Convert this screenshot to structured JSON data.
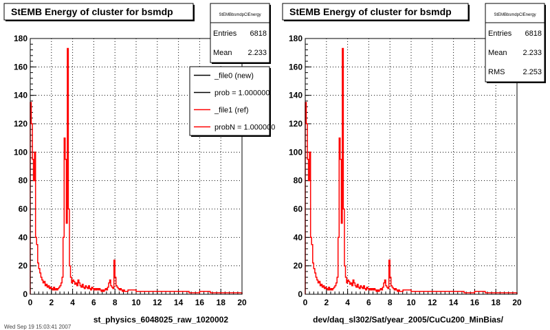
{
  "footer_text": "Wed Sep 19 15:03:41 2007",
  "chart_data": [
    {
      "type": "histogram",
      "title": "StEMB Energy of cluster for bsmdp",
      "xlabel": "st_physics_6048025_raw_1020002",
      "ylabel": "",
      "xlim": [
        0,
        20
      ],
      "ylim": [
        0,
        180
      ],
      "xticks": [
        "0",
        "2",
        "4",
        "6",
        "8",
        "10",
        "12",
        "14",
        "16",
        "18",
        "20"
      ],
      "yticks": [
        "0",
        "20",
        "40",
        "60",
        "80",
        "100",
        "120",
        "140",
        "160",
        "180"
      ],
      "grid": true,
      "line_color": "#ff0000",
      "stats": {
        "name": "StEMBbsmdpClEnergy",
        "rows": [
          {
            "label": "Entries",
            "value": "6818"
          },
          {
            "label": "Mean",
            "value": "2.233"
          }
        ]
      },
      "legend": [
        {
          "label": "_file0 (new)",
          "color": "#000000"
        },
        {
          "label": "prob = 1.000000",
          "color": "#000000"
        },
        {
          "label": "_file1 (ref)",
          "color": "#ff0000"
        },
        {
          "label": "probN = 1.000000",
          "color": "#ff0000"
        }
      ],
      "series": [
        {
          "name": "_file1 (ref)",
          "x": [
            0.05,
            0.15,
            0.25,
            0.35,
            0.45,
            0.55,
            0.65,
            0.75,
            0.85,
            0.95,
            1.05,
            1.15,
            1.25,
            1.35,
            1.45,
            1.55,
            1.65,
            1.75,
            1.85,
            1.95,
            2.05,
            2.15,
            2.25,
            2.35,
            2.45,
            2.55,
            2.65,
            2.75,
            2.85,
            2.95,
            3.05,
            3.15,
            3.25,
            3.35,
            3.45,
            3.55,
            3.65,
            3.75,
            3.85,
            3.95,
            4.05,
            4.15,
            4.25,
            4.35,
            4.45,
            4.55,
            4.65,
            4.75,
            4.85,
            4.95,
            5.05,
            5.15,
            5.25,
            5.35,
            5.45,
            5.55,
            5.65,
            5.75,
            5.85,
            5.95,
            6.05,
            6.15,
            6.25,
            6.35,
            6.45,
            6.55,
            6.65,
            6.75,
            6.85,
            6.95,
            7.05,
            7.15,
            7.25,
            7.35,
            7.45,
            7.55,
            7.65,
            7.75,
            7.85,
            7.95,
            8.05,
            8.15,
            8.25,
            8.35,
            8.45,
            8.55,
            8.65,
            8.75,
            8.85,
            8.95,
            9.5,
            10.5,
            11.5,
            12.5,
            13.5,
            14.5,
            15.5,
            16.5,
            17.5,
            18.5,
            19.5
          ],
          "y": [
            135,
            120,
            95,
            80,
            100,
            40,
            35,
            22,
            18,
            15,
            12,
            10,
            8,
            9,
            6,
            7,
            5,
            6,
            4,
            5,
            4,
            3,
            5,
            3,
            4,
            3,
            4,
            5,
            6,
            8,
            12,
            40,
            110,
            95,
            50,
            173,
            60,
            20,
            12,
            8,
            10,
            9,
            7,
            8,
            6,
            10,
            8,
            6,
            5,
            7,
            5,
            4,
            6,
            5,
            4,
            6,
            4,
            3,
            5,
            4,
            3,
            4,
            3,
            4,
            3,
            4,
            3,
            2,
            3,
            2,
            3,
            4,
            3,
            5,
            8,
            10,
            6,
            5,
            4,
            24,
            12,
            6,
            5,
            4,
            3,
            4,
            3,
            2,
            3,
            2,
            3,
            2,
            2,
            2,
            2,
            2,
            1,
            2,
            1,
            1,
            1
          ]
        }
      ]
    },
    {
      "type": "histogram",
      "title": "StEMB Energy of cluster for bsmdp",
      "xlabel": "dev/daq_sl302/Sat/year_2005/CuCu200_MinBias/",
      "ylabel": "",
      "xlim": [
        0,
        20
      ],
      "ylim": [
        0,
        180
      ],
      "xticks": [
        "0",
        "2",
        "4",
        "6",
        "8",
        "10",
        "12",
        "14",
        "16",
        "18",
        "20"
      ],
      "yticks": [
        "0",
        "20",
        "40",
        "60",
        "80",
        "100",
        "120",
        "140",
        "160",
        "180"
      ],
      "grid": true,
      "line_color": "#ff0000",
      "stats": {
        "name": "StEMBbsmdpClEnergy",
        "rows": [
          {
            "label": "Entries",
            "value": "6818"
          },
          {
            "label": "Mean",
            "value": "2.233"
          },
          {
            "label": "RMS",
            "value": "2.253"
          }
        ]
      },
      "legend": [],
      "series": [
        {
          "name": "",
          "x": [
            0.05,
            0.15,
            0.25,
            0.35,
            0.45,
            0.55,
            0.65,
            0.75,
            0.85,
            0.95,
            1.05,
            1.15,
            1.25,
            1.35,
            1.45,
            1.55,
            1.65,
            1.75,
            1.85,
            1.95,
            2.05,
            2.15,
            2.25,
            2.35,
            2.45,
            2.55,
            2.65,
            2.75,
            2.85,
            2.95,
            3.05,
            3.15,
            3.25,
            3.35,
            3.45,
            3.55,
            3.65,
            3.75,
            3.85,
            3.95,
            4.05,
            4.15,
            4.25,
            4.35,
            4.45,
            4.55,
            4.65,
            4.75,
            4.85,
            4.95,
            5.05,
            5.15,
            5.25,
            5.35,
            5.45,
            5.55,
            5.65,
            5.75,
            5.85,
            5.95,
            6.05,
            6.15,
            6.25,
            6.35,
            6.45,
            6.55,
            6.65,
            6.75,
            6.85,
            6.95,
            7.05,
            7.15,
            7.25,
            7.35,
            7.45,
            7.55,
            7.65,
            7.75,
            7.85,
            7.95,
            8.05,
            8.15,
            8.25,
            8.35,
            8.45,
            8.55,
            8.65,
            8.75,
            8.85,
            8.95,
            9.5,
            10.5,
            11.5,
            12.5,
            13.5,
            14.5,
            15.5,
            16.5,
            17.5,
            18.5,
            19.5
          ],
          "y": [
            135,
            120,
            95,
            80,
            100,
            40,
            35,
            22,
            18,
            15,
            12,
            10,
            8,
            9,
            6,
            7,
            5,
            6,
            4,
            5,
            4,
            3,
            5,
            3,
            4,
            3,
            4,
            5,
            6,
            8,
            12,
            40,
            110,
            95,
            50,
            173,
            60,
            20,
            12,
            8,
            10,
            9,
            7,
            8,
            6,
            10,
            8,
            6,
            5,
            7,
            5,
            4,
            6,
            5,
            4,
            6,
            4,
            3,
            5,
            4,
            3,
            4,
            3,
            4,
            3,
            4,
            3,
            2,
            3,
            2,
            3,
            4,
            3,
            5,
            8,
            10,
            6,
            5,
            4,
            24,
            12,
            6,
            5,
            4,
            3,
            4,
            3,
            2,
            3,
            2,
            3,
            2,
            2,
            2,
            2,
            2,
            1,
            2,
            1,
            1,
            1
          ]
        }
      ]
    }
  ]
}
